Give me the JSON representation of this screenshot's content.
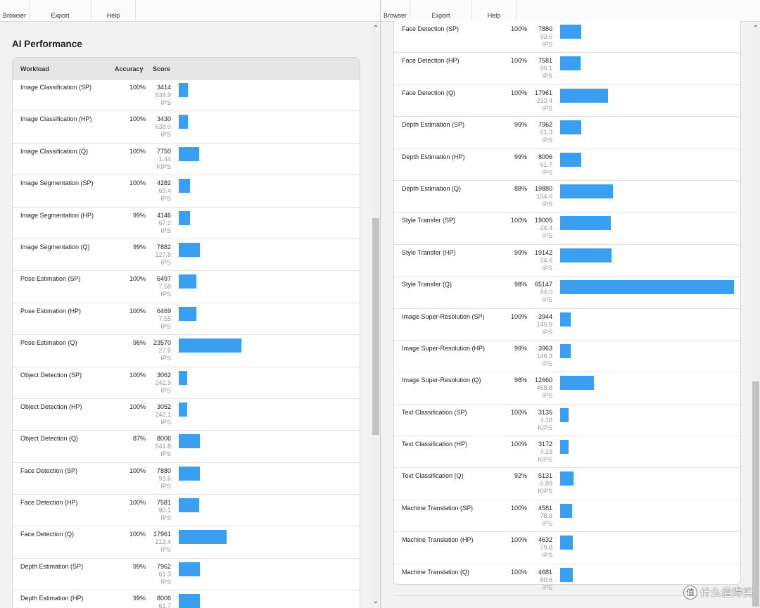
{
  "toolbar": {
    "items": [
      "Browser",
      "Export",
      "Help"
    ]
  },
  "section_title": "AI Performance",
  "table_header": {
    "workload": "Workload",
    "accuracy": "Accuracy",
    "score": "Score"
  },
  "bar_scale_max": 65147,
  "left_rows": [
    {
      "workload": "Image Classification (SP)",
      "accuracy": "100%",
      "score": "3414",
      "rate": "634.9",
      "unit": "IPS"
    },
    {
      "workload": "Image Classification (HP)",
      "accuracy": "100%",
      "score": "3430",
      "rate": "638.0",
      "unit": "IPS"
    },
    {
      "workload": "Image Classification (Q)",
      "accuracy": "100%",
      "score": "7750",
      "rate": "1.44",
      "unit": "KIPS"
    },
    {
      "workload": "Image Segmentation (SP)",
      "accuracy": "100%",
      "score": "4282",
      "rate": "69.4",
      "unit": "IPS"
    },
    {
      "workload": "Image Segmentation (HP)",
      "accuracy": "99%",
      "score": "4146",
      "rate": "67.2",
      "unit": "IPS"
    },
    {
      "workload": "Image Segmentation (Q)",
      "accuracy": "99%",
      "score": "7882",
      "rate": "127.8",
      "unit": "IPS"
    },
    {
      "workload": "Pose Estimation (SP)",
      "accuracy": "100%",
      "score": "6497",
      "rate": "7.58",
      "unit": "IPS"
    },
    {
      "workload": "Pose Estimation (HP)",
      "accuracy": "100%",
      "score": "6469",
      "rate": "7.55",
      "unit": "IPS"
    },
    {
      "workload": "Pose Estimation (Q)",
      "accuracy": "96%",
      "score": "23570",
      "rate": "27.6",
      "unit": "IPS"
    },
    {
      "workload": "Object Detection (SP)",
      "accuracy": "100%",
      "score": "3062",
      "rate": "242.9",
      "unit": "IPS"
    },
    {
      "workload": "Object Detection (HP)",
      "accuracy": "100%",
      "score": "3052",
      "rate": "242.1",
      "unit": "IPS"
    },
    {
      "workload": "Object Detection (Q)",
      "accuracy": "87%",
      "score": "8006",
      "rate": "641.8",
      "unit": "IPS"
    },
    {
      "workload": "Face Detection (SP)",
      "accuracy": "100%",
      "score": "7880",
      "rate": "93.6",
      "unit": "IPS"
    },
    {
      "workload": "Face Detection (HP)",
      "accuracy": "100%",
      "score": "7581",
      "rate": "90.1",
      "unit": "IPS"
    },
    {
      "workload": "Face Detection (Q)",
      "accuracy": "100%",
      "score": "17961",
      "rate": "213.4",
      "unit": "IPS"
    },
    {
      "workload": "Depth Estimation (SP)",
      "accuracy": "99%",
      "score": "7962",
      "rate": "61.3",
      "unit": "IPS"
    },
    {
      "workload": "Depth Estimation (HP)",
      "accuracy": "99%",
      "score": "8006",
      "rate": "61.7",
      "unit": ""
    }
  ],
  "right_rows": [
    {
      "workload": "Face Detection (SP)",
      "accuracy": "100%",
      "score": "7880",
      "rate": "93.6",
      "unit": "IPS"
    },
    {
      "workload": "Face Detection (HP)",
      "accuracy": "100%",
      "score": "7581",
      "rate": "90.1",
      "unit": "IPS"
    },
    {
      "workload": "Face Detection (Q)",
      "accuracy": "100%",
      "score": "17961",
      "rate": "213.4",
      "unit": "IPS"
    },
    {
      "workload": "Depth Estimation (SP)",
      "accuracy": "99%",
      "score": "7962",
      "rate": "61.3",
      "unit": "IPS"
    },
    {
      "workload": "Depth Estimation (HP)",
      "accuracy": "99%",
      "score": "8006",
      "rate": "61.7",
      "unit": "IPS"
    },
    {
      "workload": "Depth Estimation (Q)",
      "accuracy": "88%",
      "score": "19880",
      "rate": "154.6",
      "unit": "IPS"
    },
    {
      "workload": "Style Transfer (SP)",
      "accuracy": "100%",
      "score": "19005",
      "rate": "24.4",
      "unit": "IPS"
    },
    {
      "workload": "Style Transfer (HP)",
      "accuracy": "99%",
      "score": "19142",
      "rate": "24.6",
      "unit": "IPS"
    },
    {
      "workload": "Style Transfer (Q)",
      "accuracy": "98%",
      "score": "65147",
      "rate": "84.0",
      "unit": "IPS"
    },
    {
      "workload": "Image Super-Resolution (SP)",
      "accuracy": "100%",
      "score": "3944",
      "rate": "145.6",
      "unit": "IPS"
    },
    {
      "workload": "Image Super-Resolution (HP)",
      "accuracy": "99%",
      "score": "3963",
      "rate": "146.3",
      "unit": "IPS"
    },
    {
      "workload": "Image Super-Resolution (Q)",
      "accuracy": "98%",
      "score": "12660",
      "rate": "468.8",
      "unit": "IPS"
    },
    {
      "workload": "Text Classification (SP)",
      "accuracy": "100%",
      "score": "3135",
      "rate": "4.18",
      "unit": "KIPS"
    },
    {
      "workload": "Text Classification (HP)",
      "accuracy": "100%",
      "score": "3172",
      "rate": "4.23",
      "unit": "KIPS"
    },
    {
      "workload": "Text Classification (Q)",
      "accuracy": "92%",
      "score": "5131",
      "rate": "6.89",
      "unit": "KIPS"
    },
    {
      "workload": "Machine Translation (SP)",
      "accuracy": "100%",
      "score": "4581",
      "rate": "78.9",
      "unit": "IPS"
    },
    {
      "workload": "Machine Translation (HP)",
      "accuracy": "100%",
      "score": "4632",
      "rate": "79.8",
      "unit": "IPS"
    },
    {
      "workload": "Machine Translation (Q)",
      "accuracy": "100%",
      "score": "4681",
      "rate": "80.6",
      "unit": "IPS"
    }
  ],
  "watermark": {
    "icon": "值",
    "text": "什么值得买"
  },
  "colors": {
    "bar": "#3a9ff0"
  }
}
